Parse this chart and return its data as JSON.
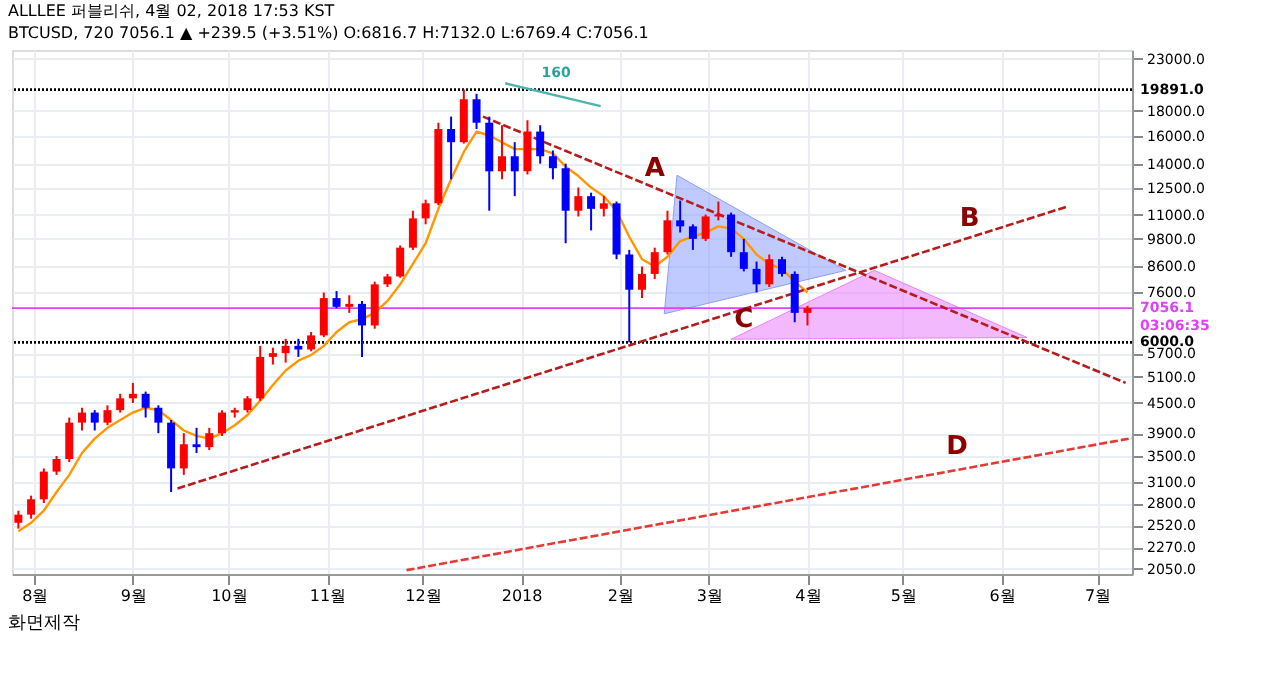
{
  "chart_data": {
    "type": "candlestick",
    "title": "ALLLEE 퍼블리쉬, 4월 02, 2018 17:53 KST",
    "subtitle": "BTCUSD, 720 7056.1 ▲ +239.5 (+3.51%) O:6816.7 H:7132.0 L:6769.4 C:7056.1",
    "x": [
      "2017-07-27",
      "2017-07-31",
      "2017-08-04",
      "2017-08-08",
      "2017-08-12",
      "2017-08-16",
      "2017-08-20",
      "2017-08-24",
      "2017-08-28",
      "2017-09-01",
      "2017-09-05",
      "2017-09-09",
      "2017-09-13",
      "2017-09-17",
      "2017-09-21",
      "2017-09-25",
      "2017-09-29",
      "2017-10-03",
      "2017-10-07",
      "2017-10-11",
      "2017-10-15",
      "2017-10-19",
      "2017-10-23",
      "2017-10-27",
      "2017-10-31",
      "2017-11-04",
      "2017-11-08",
      "2017-11-12",
      "2017-11-16",
      "2017-11-20",
      "2017-11-24",
      "2017-11-28",
      "2017-12-02",
      "2017-12-06",
      "2017-12-10",
      "2017-12-14",
      "2017-12-18",
      "2017-12-22",
      "2017-12-26",
      "2017-12-30",
      "2018-01-03",
      "2018-01-07",
      "2018-01-11",
      "2018-01-15",
      "2018-01-19",
      "2018-01-23",
      "2018-01-27",
      "2018-01-31",
      "2018-02-04",
      "2018-02-08",
      "2018-02-12",
      "2018-02-16",
      "2018-02-20",
      "2018-02-24",
      "2018-02-28",
      "2018-03-04",
      "2018-03-08",
      "2018-03-12",
      "2018-03-16",
      "2018-03-20",
      "2018-03-24",
      "2018-03-28",
      "2018-04-01"
    ],
    "ohlc": [
      [
        2550,
        2700,
        2480,
        2650
      ],
      [
        2650,
        2900,
        2600,
        2850
      ],
      [
        2850,
        3300,
        2800,
        3250
      ],
      [
        3250,
        3500,
        3200,
        3450
      ],
      [
        3450,
        4200,
        3400,
        4100
      ],
      [
        4100,
        4400,
        3950,
        4300
      ],
      [
        4300,
        4350,
        3950,
        4100
      ],
      [
        4100,
        4450,
        4050,
        4350
      ],
      [
        4350,
        4700,
        4300,
        4600
      ],
      [
        4600,
        4950,
        4500,
        4700
      ],
      [
        4700,
        4750,
        4200,
        4400
      ],
      [
        4400,
        4450,
        3900,
        4100
      ],
      [
        4100,
        4150,
        2950,
        3300
      ],
      [
        3300,
        3900,
        3200,
        3700
      ],
      [
        3700,
        4000,
        3550,
        3650
      ],
      [
        3650,
        4000,
        3600,
        3900
      ],
      [
        3900,
        4350,
        3850,
        4300
      ],
      [
        4300,
        4400,
        4200,
        4350
      ],
      [
        4350,
        4650,
        4300,
        4600
      ],
      [
        4600,
        5900,
        4550,
        5600
      ],
      [
        5600,
        5850,
        5400,
        5700
      ],
      [
        5700,
        6100,
        5450,
        5900
      ],
      [
        5900,
        6100,
        5600,
        5800
      ],
      [
        5800,
        6300,
        5750,
        6200
      ],
      [
        6200,
        7600,
        6150,
        7400
      ],
      [
        7400,
        7650,
        7050,
        7100
      ],
      [
        7100,
        7500,
        6900,
        7200
      ],
      [
        7200,
        7300,
        5600,
        6500
      ],
      [
        6500,
        8000,
        6400,
        7900
      ],
      [
        7900,
        8300,
        7800,
        8200
      ],
      [
        8200,
        9500,
        8150,
        9400
      ],
      [
        9400,
        11200,
        9300,
        10800
      ],
      [
        10800,
        11800,
        10500,
        11600
      ],
      [
        11600,
        17000,
        11500,
        16500
      ],
      [
        16500,
        17500,
        13000,
        15500
      ],
      [
        15500,
        19891,
        15400,
        19000
      ],
      [
        19000,
        19500,
        16500,
        17000
      ],
      [
        17000,
        17500,
        11200,
        13500
      ],
      [
        13500,
        16800,
        13000,
        14500
      ],
      [
        14500,
        15500,
        12000,
        13500
      ],
      [
        13500,
        17200,
        13300,
        16300
      ],
      [
        16300,
        16800,
        14000,
        14500
      ],
      [
        14500,
        14900,
        13000,
        13700
      ],
      [
        13700,
        14000,
        9600,
        11200
      ],
      [
        11200,
        12500,
        10900,
        12000
      ],
      [
        12000,
        12200,
        10200,
        11300
      ],
      [
        11300,
        12000,
        10900,
        11600
      ],
      [
        11600,
        11700,
        8900,
        9100
      ],
      [
        9100,
        9300,
        6000,
        7700
      ],
      [
        7700,
        8600,
        7400,
        8300
      ],
      [
        8300,
        9400,
        8100,
        9200
      ],
      [
        9200,
        11200,
        9100,
        10700
      ],
      [
        10700,
        11750,
        10100,
        10400
      ],
      [
        10400,
        10500,
        9300,
        9800
      ],
      [
        9800,
        11000,
        9700,
        10900
      ],
      [
        10900,
        11700,
        10700,
        11000
      ],
      [
        11000,
        11100,
        9000,
        9200
      ],
      [
        9200,
        9800,
        8400,
        8500
      ],
      [
        8500,
        8800,
        7600,
        7900
      ],
      [
        7900,
        9100,
        7800,
        8900
      ],
      [
        8900,
        9000,
        8200,
        8300
      ],
      [
        8300,
        8400,
        6600,
        6900
      ],
      [
        6900,
        7132,
        6500,
        7056.1
      ]
    ],
    "colors": [
      "#ff0000",
      "#ff0000",
      "#ff0000",
      "#ff0000",
      "#ff0000",
      "#ff0000",
      "#0000ff",
      "#ff0000",
      "#ff0000",
      "#ff0000",
      "#0000ff",
      "#0000ff",
      "#0000ff",
      "#ff0000",
      "#0000ff",
      "#ff0000",
      "#ff0000",
      "#ff0000",
      "#ff0000",
      "#ff0000",
      "#ff0000",
      "#ff0000",
      "#0000ff",
      "#ff0000",
      "#ff0000",
      "#0000ff",
      "#ff0000",
      "#0000ff",
      "#ff0000",
      "#ff0000",
      "#ff0000",
      "#ff0000",
      "#ff0000",
      "#ff0000",
      "#0000ff",
      "#ff0000",
      "#0000ff",
      "#0000ff",
      "#ff0000",
      "#0000ff",
      "#ff0000",
      "#0000ff",
      "#0000ff",
      "#0000ff",
      "#ff0000",
      "#0000ff",
      "#ff0000",
      "#0000ff",
      "#0000ff",
      "#ff0000",
      "#ff0000",
      "#ff0000",
      "#0000ff",
      "#0000ff",
      "#ff0000",
      "#ff0000",
      "#0000ff",
      "#0000ff",
      "#0000ff",
      "#ff0000",
      "#0000ff",
      "#0000ff",
      "#ff0000"
    ],
    "series": [
      {
        "type": "line",
        "color": "#ff9800",
        "x": [
          "2017-07-27",
          "2017-07-31",
          "2017-08-04",
          "2017-08-08",
          "2017-08-12",
          "2017-08-16",
          "2017-08-20",
          "2017-08-24",
          "2017-08-28",
          "2017-09-01",
          "2017-09-05",
          "2017-09-09",
          "2017-09-13",
          "2017-09-17",
          "2017-09-21",
          "2017-09-25",
          "2017-09-29",
          "2017-10-03",
          "2017-10-07",
          "2017-10-11",
          "2017-10-15",
          "2017-10-19",
          "2017-10-23",
          "2017-10-27",
          "2017-10-31",
          "2017-11-04",
          "2017-11-08",
          "2017-11-12",
          "2017-11-16",
          "2017-11-20",
          "2017-11-24",
          "2017-11-28",
          "2017-12-02",
          "2017-12-06",
          "2017-12-10",
          "2017-12-14",
          "2017-12-18",
          "2017-12-22",
          "2017-12-26",
          "2017-12-30",
          "2018-01-03",
          "2018-01-07",
          "2018-01-11",
          "2018-01-15",
          "2018-01-19",
          "2018-01-23",
          "2018-01-27",
          "2018-01-31",
          "2018-02-04",
          "2018-02-08",
          "2018-02-12",
          "2018-02-16",
          "2018-02-20",
          "2018-02-24",
          "2018-02-28",
          "2018-03-04",
          "2018-03-08",
          "2018-03-12",
          "2018-03-16",
          "2018-03-20",
          "2018-03-24",
          "2018-03-28",
          "2018-04-01"
        ],
        "values": [
          2450,
          2550,
          2700,
          2950,
          3200,
          3550,
          3800,
          4000,
          4150,
          4300,
          4400,
          4350,
          4150,
          3950,
          3850,
          3800,
          3900,
          4050,
          4250,
          4550,
          4900,
          5250,
          5500,
          5650,
          5900,
          6300,
          6600,
          6700,
          6900,
          7300,
          7900,
          8700,
          9600,
          11300,
          13000,
          14800,
          16300,
          16000,
          15500,
          15000,
          15000,
          15000,
          14700,
          13800,
          13200,
          12500,
          12000,
          11200,
          9900,
          8900,
          8600,
          9000,
          9700,
          9900,
          10100,
          10400,
          10300,
          9800,
          9100,
          8700,
          8500,
          8000,
          7600
        ]
      },
      {
        "type": "line",
        "line_style": "dashed",
        "color": "#b71c1c",
        "x": [
          "2017-12-20",
          "2018-07-10"
        ],
        "values": [
          17500,
          4950
        ]
      },
      {
        "type": "line",
        "line_style": "dashed",
        "color": "#b71c1c",
        "x": [
          "2017-09-15",
          "2018-06-22"
        ],
        "values": [
          3000,
          11440
        ]
      },
      {
        "type": "line",
        "line_style": "dashed",
        "color": "#e53935",
        "x": [
          "2017-11-26",
          "2018-07-12"
        ],
        "values": [
          2037,
          3810
        ]
      },
      {
        "type": "line",
        "color": "#4db6ac",
        "x": [
          "2017-12-27",
          "2018-01-26"
        ],
        "values": [
          20500,
          18390
        ]
      }
    ],
    "ref_lines": [
      {
        "axis": "y",
        "value": 19891,
        "label": "19891.0",
        "color": "#000000",
        "line_style": "dotted"
      },
      {
        "axis": "y",
        "value": 6000,
        "label": "6000.0",
        "color": "#000000",
        "line_style": "dotted"
      },
      {
        "axis": "y",
        "value": 7056.1,
        "label": "7056.1\n03:06:35",
        "color": "#e040fb",
        "line_style": "solid"
      }
    ],
    "annotations": [
      "화면제작",
      {
        "text": "A",
        "x": "2018-02-12",
        "y": 12500
      },
      {
        "text": "B",
        "x": "2018-05-22",
        "y": 9860
      },
      {
        "text": "C",
        "x": "2018-03-12",
        "y": 6100
      },
      {
        "text": "D",
        "x": "2018-05-18",
        "y": 3340
      },
      {
        "text": "160",
        "x": "2018-01-12",
        "y": 20300
      }
    ],
    "xlim": [
      "2017-07-25",
      "2018-07-12"
    ],
    "xticks": [
      {
        "value": "2017-08-01",
        "label": "8월"
      },
      {
        "value": "2017-09-01",
        "label": "9월"
      },
      {
        "value": "2017-10-01",
        "label": "10월"
      },
      {
        "value": "2017-11-01",
        "label": "11월"
      },
      {
        "value": "2017-12-01",
        "label": "12월"
      },
      {
        "value": "2018-01-01",
        "label": "2018"
      },
      {
        "value": "2018-02-01",
        "label": "2월"
      },
      {
        "value": "2018-03-01",
        "label": "3월"
      },
      {
        "value": "2018-04-01",
        "label": "4월"
      },
      {
        "value": "2018-05-01",
        "label": "5월"
      },
      {
        "value": "2018-06-01",
        "label": "6월"
      },
      {
        "value": "2018-07-01",
        "label": "7월"
      }
    ],
    "ylim": [
      2000,
      24000
    ],
    "log": "y",
    "yticks": [
      {
        "value": 2050,
        "label": "2050.0"
      },
      {
        "value": 2270,
        "label": "2270.0"
      },
      {
        "value": 2520,
        "label": "2520.0"
      },
      {
        "value": 2800,
        "label": "2800.0"
      },
      {
        "value": 3100,
        "label": "3100.0"
      },
      {
        "value": 3500,
        "label": "3500.0"
      },
      {
        "value": 3900,
        "label": "3900.0"
      },
      {
        "value": 4500,
        "label": "4500.0"
      },
      {
        "value": 5100,
        "label": "5100.0"
      },
      {
        "value": 5700,
        "label": "5700.0"
      },
      {
        "value": 7600,
        "label": "7600.0"
      },
      {
        "value": 8600,
        "label": "8600.0"
      },
      {
        "value": 9800,
        "label": "9800.0"
      },
      {
        "value": 11000,
        "label": "11000.0"
      },
      {
        "value": 12500,
        "label": "12500.0"
      },
      {
        "value": 14000,
        "label": "14000.0"
      },
      {
        "value": 16000,
        "label": "16000.0"
      },
      {
        "value": 18000,
        "label": "18000.0"
      },
      {
        "value": 23000,
        "label": "23000.0"
      }
    ],
    "grid": true
  }
}
